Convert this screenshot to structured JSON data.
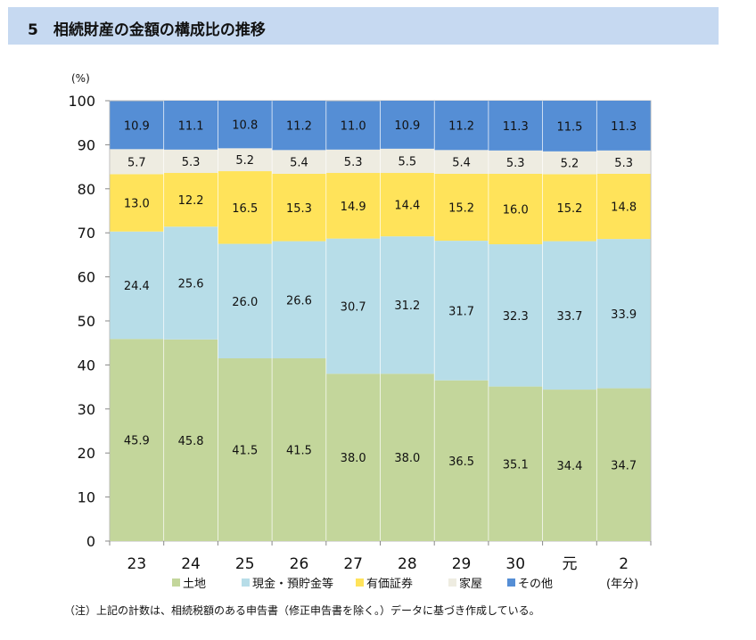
{
  "title": "5　相続財産の金額の構成比の推移",
  "note": "（注）上記の計数は、相続税額のある申告書（修正申告書を除く。）データに基づき作成している。",
  "chart_data": {
    "type": "bar",
    "stacked": true,
    "ylabel": "(%)",
    "xlabel": "(年分)",
    "ylim": [
      0,
      100
    ],
    "yticks": [
      0,
      10,
      20,
      30,
      40,
      50,
      60,
      70,
      80,
      90,
      100
    ],
    "categories": [
      "23",
      "24",
      "25",
      "26",
      "27",
      "28",
      "29",
      "30",
      "元",
      "2"
    ],
    "legend_position": "bottom",
    "grid": false,
    "series": [
      {
        "name": "土地",
        "color": "#c3d69b",
        "values": [
          45.9,
          45.8,
          41.5,
          41.5,
          38.0,
          38.0,
          36.5,
          35.1,
          34.4,
          34.7
        ]
      },
      {
        "name": "現金・預貯金等",
        "color": "#b7dde8",
        "values": [
          24.4,
          25.6,
          26.0,
          26.6,
          30.7,
          31.2,
          31.7,
          32.3,
          33.7,
          33.9
        ]
      },
      {
        "name": "有価証券",
        "color": "#ffe35a",
        "values": [
          13.0,
          12.2,
          16.5,
          15.3,
          14.9,
          14.4,
          15.2,
          16.0,
          15.2,
          14.8
        ]
      },
      {
        "name": "家屋",
        "color": "#eeece1",
        "values": [
          5.7,
          5.3,
          5.2,
          5.4,
          5.3,
          5.5,
          5.4,
          5.3,
          5.2,
          5.3
        ]
      },
      {
        "name": "その他",
        "color": "#558ed5",
        "values": [
          10.9,
          11.1,
          10.8,
          11.2,
          11.0,
          10.9,
          11.2,
          11.3,
          11.5,
          11.3
        ]
      }
    ]
  }
}
